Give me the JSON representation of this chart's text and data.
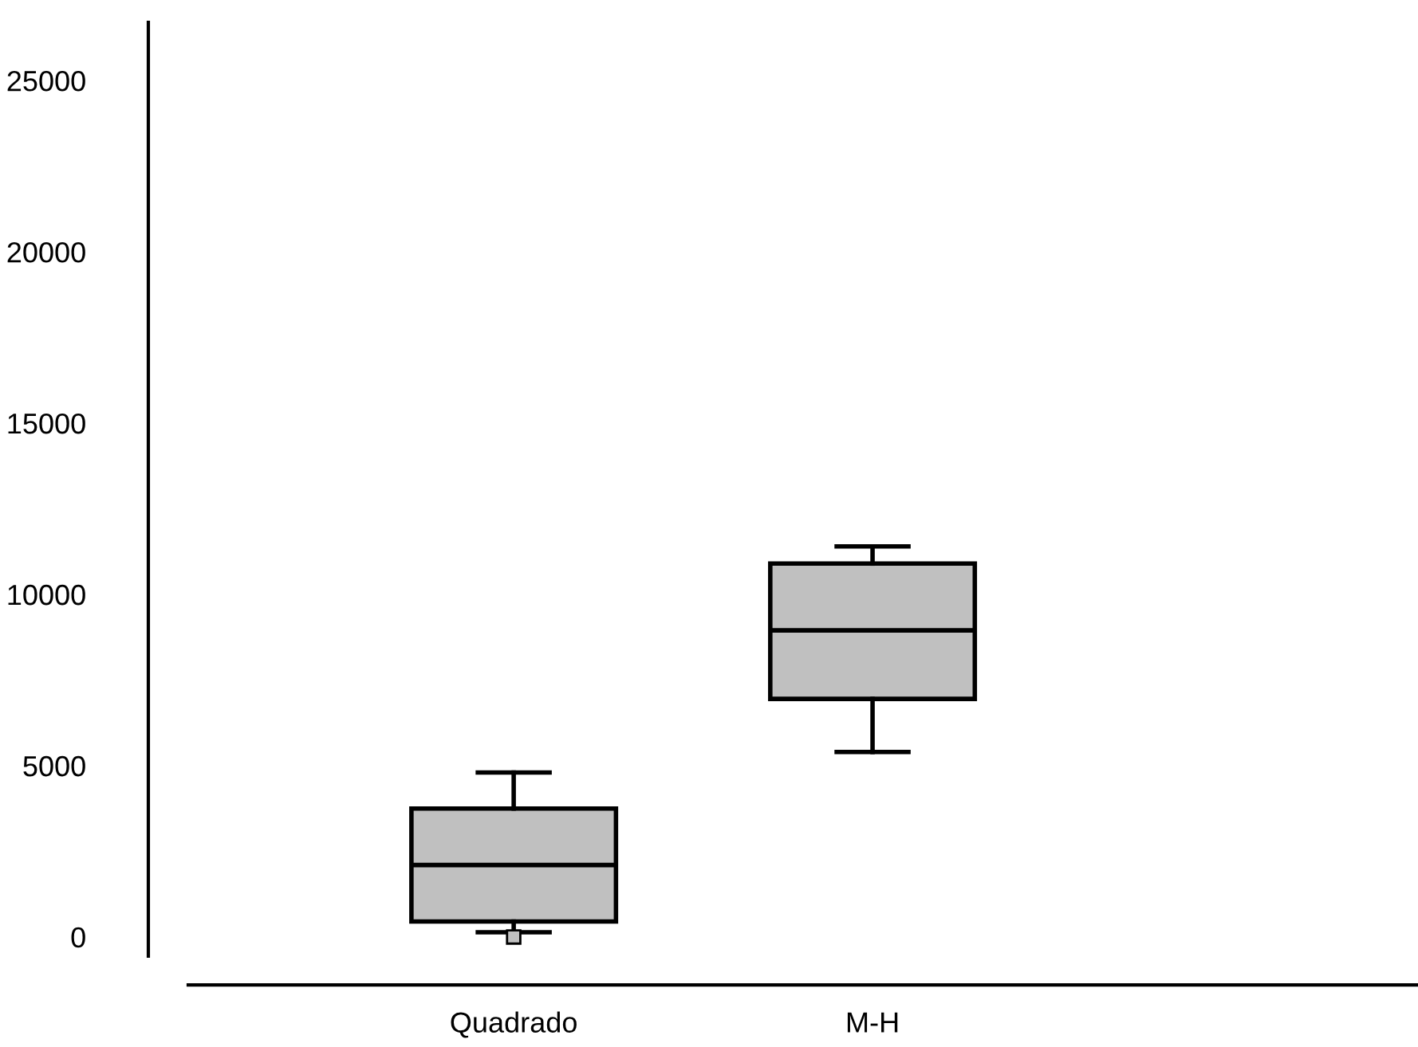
{
  "chart_data": {
    "type": "box",
    "categories": [
      "Quadrado",
      "M-H"
    ],
    "color": "#c0c0c0",
    "boxes": [
      {
        "low": 140,
        "q1": 450,
        "median": 2100,
        "q3": 3750,
        "high": 4800,
        "outliers": [
          0
        ]
      },
      {
        "low": 5400,
        "q1": 6950,
        "median": 8950,
        "q3": 10900,
        "high": 11400
      }
    ],
    "ylim": [
      -560,
      26700
    ],
    "yticks": [
      0,
      5000,
      10000,
      15000,
      20000,
      25000
    ],
    "grid": false,
    "legend": false
  }
}
